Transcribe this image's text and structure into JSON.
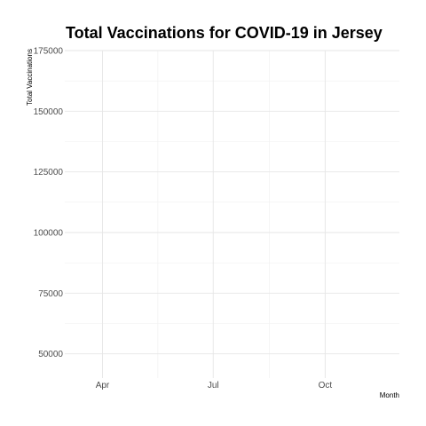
{
  "chart_data": {
    "type": "line",
    "title": "Total Vaccinations for COVID-19 in Jersey",
    "xlabel": "Month",
    "ylabel": "Total Vaccinations",
    "y_ticks": [
      50000,
      75000,
      100000,
      125000,
      150000,
      175000
    ],
    "y_tick_labels": [
      "50000",
      "75000",
      "100000",
      "125000",
      "150000",
      "175000"
    ],
    "ylim": [
      40000,
      175000
    ],
    "x_ticks": [
      "2021-04-01",
      "2021-07-01",
      "2021-10-01"
    ],
    "x_tick_labels": [
      "Apr",
      "Jul",
      "Oct"
    ],
    "xlim": [
      "2021-03-01",
      "2021-12-01"
    ],
    "grid": true,
    "series": []
  }
}
